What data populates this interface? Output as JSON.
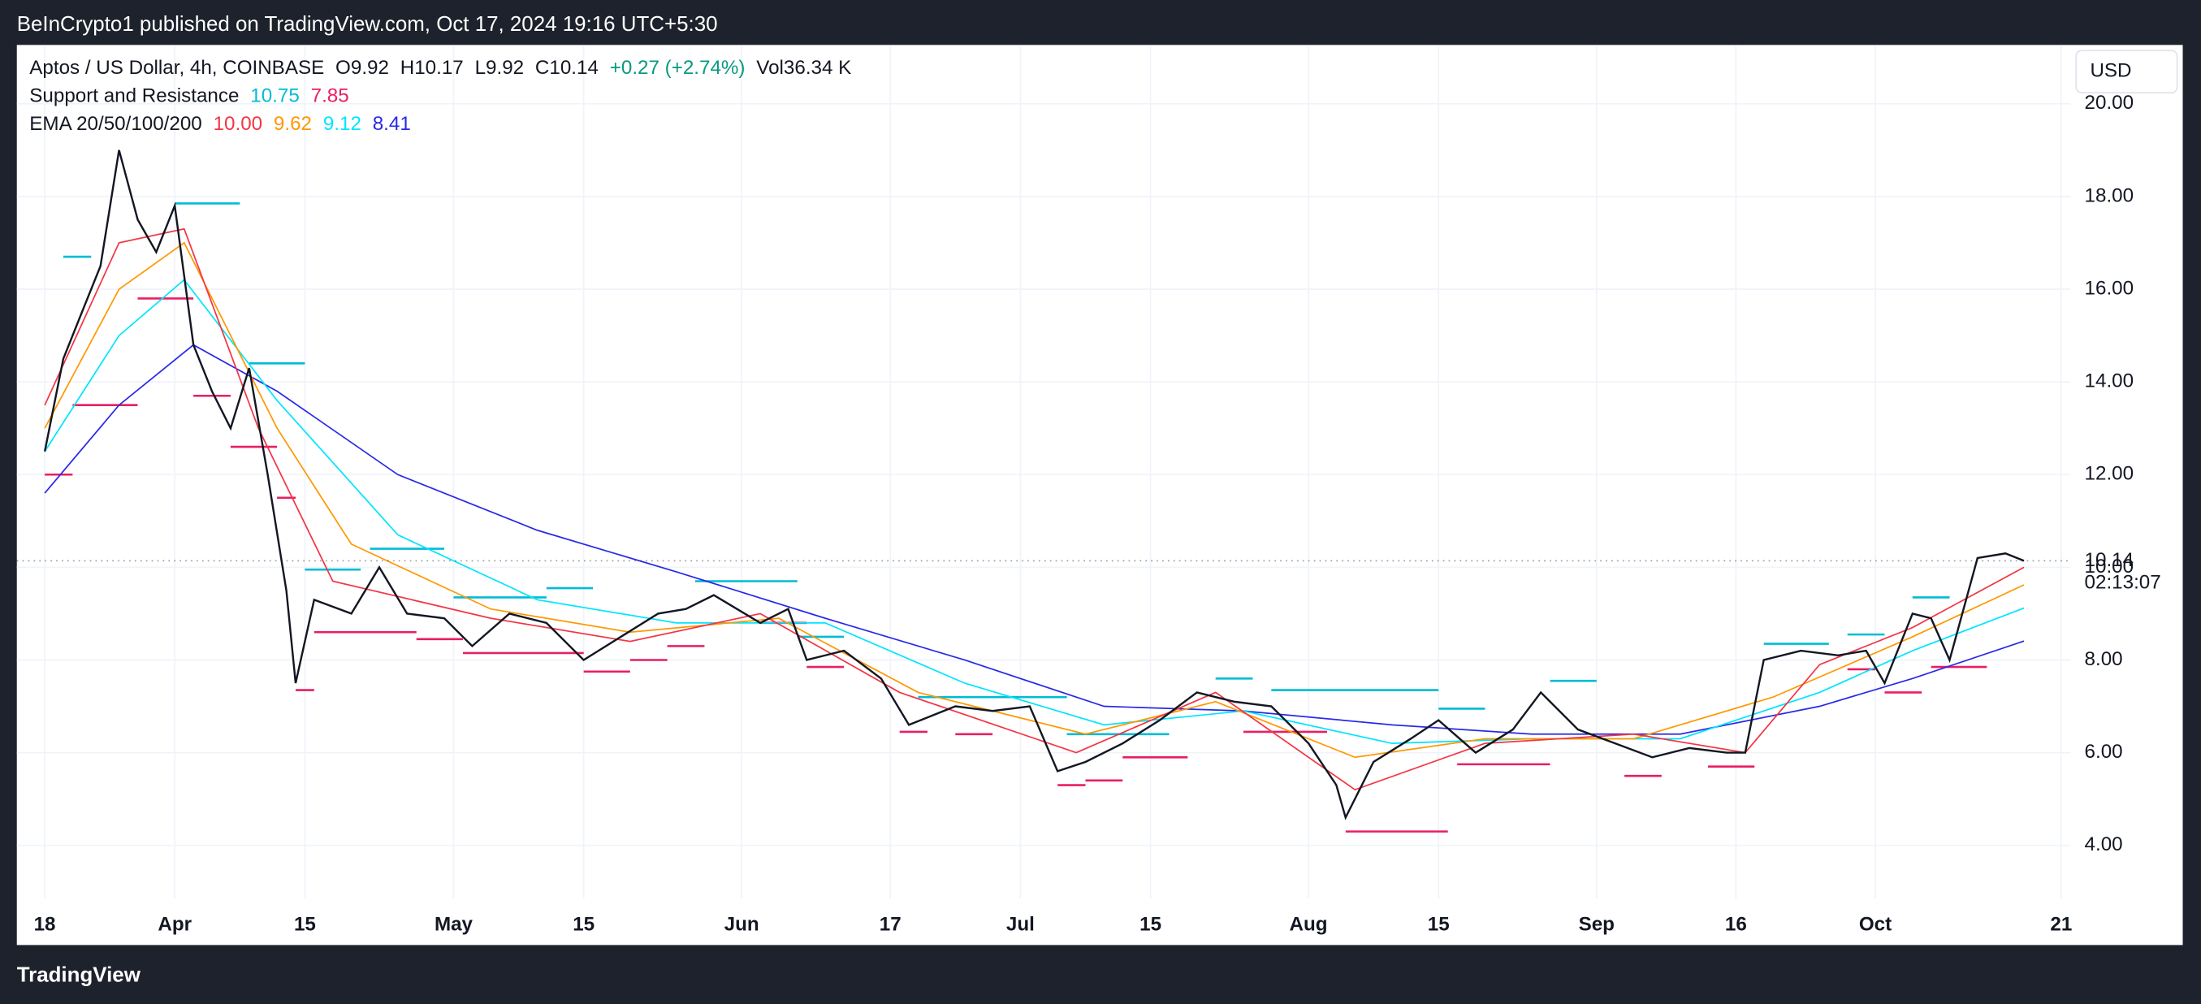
{
  "chart_data": {
    "type": "line",
    "publisher": "BeInCrypto1 published on TradingView.com, Oct 17, 2024 19:16 UTC+5:30",
    "symbol": "Aptos / US Dollar, 4h, COINBASE",
    "ohlc": [
      "O9.92",
      "H10.17",
      "L9.92",
      "C10.14",
      "+0.27 (+2.74%)",
      "Vol36.34 K"
    ],
    "currency": "USD",
    "brand": "TradingView",
    "countdown": "02:13:07",
    "last_price": 10.14,
    "xlim": [
      "2024-03-15",
      "2024-10-22"
    ],
    "xticks": [
      {
        "value": "2024-03-18",
        "label": "18"
      },
      {
        "value": "2024-04-01",
        "label": "Apr"
      },
      {
        "value": "2024-04-15",
        "label": "15"
      },
      {
        "value": "2024-05-01",
        "label": "May"
      },
      {
        "value": "2024-05-15",
        "label": "15"
      },
      {
        "value": "2024-06-01",
        "label": "Jun"
      },
      {
        "value": "2024-06-17",
        "label": "17"
      },
      {
        "value": "2024-07-01",
        "label": "Jul"
      },
      {
        "value": "2024-07-15",
        "label": "15"
      },
      {
        "value": "2024-08-01",
        "label": "Aug"
      },
      {
        "value": "2024-08-15",
        "label": "15"
      },
      {
        "value": "2024-09-01",
        "label": "Sep"
      },
      {
        "value": "2024-09-16",
        "label": "16"
      },
      {
        "value": "2024-10-01",
        "label": "Oct"
      },
      {
        "value": "2024-10-21",
        "label": "21"
      }
    ],
    "ylim": [
      2.85,
      21.27
    ],
    "yticks": [
      {
        "value": 4,
        "label": "4.00"
      },
      {
        "value": 6,
        "label": "6.00"
      },
      {
        "value": 8,
        "label": "8.00"
      },
      {
        "value": 10,
        "label": "10.00"
      },
      {
        "value": 12,
        "label": "12.00"
      },
      {
        "value": 14,
        "label": "14.00"
      },
      {
        "value": 16,
        "label": "16.00"
      },
      {
        "value": 18,
        "label": "18.00"
      },
      {
        "value": 20,
        "label": "20.00"
      }
    ],
    "grid": true,
    "series": [
      {
        "name": "Aptos / US Dollar",
        "color": "#131722",
        "x": [
          "2024-03-18",
          "2024-03-20",
          "2024-03-22",
          "2024-03-24",
          "2024-03-26",
          "2024-03-28",
          "2024-03-30",
          "2024-04-01",
          "2024-04-03",
          "2024-04-05",
          "2024-04-07",
          "2024-04-09",
          "2024-04-11",
          "2024-04-13",
          "2024-04-14",
          "2024-04-16",
          "2024-04-20",
          "2024-04-23",
          "2024-04-26",
          "2024-04-30",
          "2024-05-03",
          "2024-05-07",
          "2024-05-11",
          "2024-05-15",
          "2024-05-19",
          "2024-05-23",
          "2024-05-26",
          "2024-05-29",
          "2024-06-03",
          "2024-06-06",
          "2024-06-08",
          "2024-06-12",
          "2024-06-16",
          "2024-06-19",
          "2024-06-24",
          "2024-06-28",
          "2024-07-02",
          "2024-07-05",
          "2024-07-08",
          "2024-07-12",
          "2024-07-16",
          "2024-07-20",
          "2024-07-24",
          "2024-07-28",
          "2024-08-01",
          "2024-08-04",
          "2024-08-05",
          "2024-08-08",
          "2024-08-12",
          "2024-08-15",
          "2024-08-19",
          "2024-08-23",
          "2024-08-26",
          "2024-08-30",
          "2024-09-03",
          "2024-09-07",
          "2024-09-11",
          "2024-09-15",
          "2024-09-17",
          "2024-09-19",
          "2024-09-23",
          "2024-09-27",
          "2024-09-30",
          "2024-10-02",
          "2024-10-05",
          "2024-10-07",
          "2024-10-09",
          "2024-10-12",
          "2024-10-15",
          "2024-10-17"
        ],
        "values": [
          12.5,
          14.5,
          15.5,
          16.5,
          19.0,
          17.5,
          16.8,
          17.8,
          14.8,
          13.8,
          13.0,
          14.3,
          12.0,
          9.5,
          7.5,
          9.3,
          9.0,
          10.0,
          9.0,
          8.9,
          8.3,
          9.0,
          8.8,
          8.0,
          8.5,
          9.0,
          9.1,
          9.4,
          8.8,
          9.1,
          8.0,
          8.2,
          7.6,
          6.6,
          7.0,
          6.9,
          7.0,
          5.6,
          5.8,
          6.2,
          6.7,
          7.3,
          7.1,
          7.0,
          6.2,
          5.3,
          4.6,
          5.8,
          6.3,
          6.7,
          6.0,
          6.5,
          7.3,
          6.5,
          6.2,
          5.9,
          6.1,
          6.0,
          6.0,
          8.0,
          8.2,
          8.1,
          8.2,
          7.5,
          9.0,
          8.9,
          8.0,
          10.2,
          10.3,
          10.14
        ]
      },
      {
        "name": "EMA 20",
        "color": "#f23645",
        "x": [
          "2024-03-18",
          "2024-03-26",
          "2024-04-02",
          "2024-04-10",
          "2024-04-18",
          "2024-05-05",
          "2024-05-20",
          "2024-06-03",
          "2024-06-18",
          "2024-07-07",
          "2024-07-22",
          "2024-08-06",
          "2024-08-20",
          "2024-09-05",
          "2024-09-17",
          "2024-09-25",
          "2024-10-05",
          "2024-10-17"
        ],
        "values": [
          13.5,
          17.0,
          17.3,
          13.0,
          9.7,
          8.9,
          8.4,
          9.0,
          7.3,
          6.0,
          7.3,
          5.2,
          6.2,
          6.4,
          6.0,
          7.9,
          8.7,
          10.0
        ],
        "legend_value": "10.00"
      },
      {
        "name": "EMA 50",
        "color": "#ff9800",
        "x": [
          "2024-03-18",
          "2024-03-26",
          "2024-04-02",
          "2024-04-12",
          "2024-04-20",
          "2024-05-05",
          "2024-05-20",
          "2024-06-05",
          "2024-06-20",
          "2024-07-08",
          "2024-07-22",
          "2024-08-06",
          "2024-08-20",
          "2024-09-05",
          "2024-09-20",
          "2024-10-05",
          "2024-10-17"
        ],
        "values": [
          13.0,
          16.0,
          17.0,
          13.0,
          10.5,
          9.1,
          8.6,
          8.9,
          7.3,
          6.4,
          7.1,
          5.9,
          6.3,
          6.3,
          7.2,
          8.5,
          9.62
        ],
        "legend_value": "9.62"
      },
      {
        "name": "EMA 100",
        "color": "#00e5ff",
        "x": [
          "2024-03-18",
          "2024-03-26",
          "2024-04-02",
          "2024-04-12",
          "2024-04-25",
          "2024-05-10",
          "2024-05-25",
          "2024-06-10",
          "2024-06-25",
          "2024-07-10",
          "2024-07-25",
          "2024-08-10",
          "2024-08-25",
          "2024-09-10",
          "2024-09-25",
          "2024-10-05",
          "2024-10-17"
        ],
        "values": [
          12.5,
          15.0,
          16.2,
          13.6,
          10.7,
          9.3,
          8.8,
          8.8,
          7.5,
          6.6,
          6.9,
          6.2,
          6.3,
          6.3,
          7.3,
          8.2,
          9.12
        ],
        "legend_value": "9.12"
      },
      {
        "name": "EMA 200",
        "color": "#2929e8",
        "x": [
          "2024-03-18",
          "2024-03-26",
          "2024-04-03",
          "2024-04-12",
          "2024-04-25",
          "2024-05-10",
          "2024-05-25",
          "2024-06-10",
          "2024-06-25",
          "2024-07-10",
          "2024-07-25",
          "2024-08-10",
          "2024-08-25",
          "2024-09-10",
          "2024-09-25",
          "2024-10-05",
          "2024-10-17"
        ],
        "values": [
          11.6,
          13.5,
          14.8,
          13.8,
          12.0,
          10.8,
          9.9,
          8.9,
          8.0,
          7.0,
          6.9,
          6.6,
          6.4,
          6.4,
          7.0,
          7.6,
          8.41
        ],
        "legend_value": "8.41"
      }
    ],
    "ema_label": "EMA 20/50/100/200",
    "support_resistance": {
      "name": "Support and Resistance",
      "resistance": {
        "color": "#00bcd4",
        "legend_value": "10.75",
        "levels": [
          {
            "start": "2024-03-20",
            "end": "2024-03-23",
            "value": 16.7
          },
          {
            "start": "2024-04-01",
            "end": "2024-04-08",
            "value": 17.85
          },
          {
            "start": "2024-04-09",
            "end": "2024-04-15",
            "value": 14.4
          },
          {
            "start": "2024-04-15",
            "end": "2024-04-21",
            "value": 9.95
          },
          {
            "start": "2024-04-22",
            "end": "2024-04-30",
            "value": 10.4
          },
          {
            "start": "2024-05-01",
            "end": "2024-05-11",
            "value": 9.35
          },
          {
            "start": "2024-05-11",
            "end": "2024-05-16",
            "value": 9.55
          },
          {
            "start": "2024-05-27",
            "end": "2024-06-07",
            "value": 9.7
          },
          {
            "start": "2024-06-07",
            "end": "2024-06-12",
            "value": 8.5
          },
          {
            "start": "2024-06-20",
            "end": "2024-07-06",
            "value": 7.2
          },
          {
            "start": "2024-07-06",
            "end": "2024-07-17",
            "value": 6.4
          },
          {
            "start": "2024-07-22",
            "end": "2024-07-26",
            "value": 7.6
          },
          {
            "start": "2024-07-28",
            "end": "2024-08-15",
            "value": 7.35
          },
          {
            "start": "2024-08-15",
            "end": "2024-08-20",
            "value": 6.95
          },
          {
            "start": "2024-08-27",
            "end": "2024-09-01",
            "value": 7.55
          },
          {
            "start": "2024-09-19",
            "end": "2024-09-26",
            "value": 8.35
          },
          {
            "start": "2024-09-28",
            "end": "2024-10-02",
            "value": 8.55
          },
          {
            "start": "2024-10-05",
            "end": "2024-10-09",
            "value": 9.35
          }
        ]
      },
      "support": {
        "color": "#e91e63",
        "legend_value": "7.85",
        "levels": [
          {
            "start": "2024-03-18",
            "end": "2024-03-21",
            "value": 12.0
          },
          {
            "start": "2024-03-21",
            "end": "2024-03-28",
            "value": 13.5
          },
          {
            "start": "2024-03-28",
            "end": "2024-04-03",
            "value": 15.8
          },
          {
            "start": "2024-04-03",
            "end": "2024-04-07",
            "value": 13.7
          },
          {
            "start": "2024-04-07",
            "end": "2024-04-12",
            "value": 12.6
          },
          {
            "start": "2024-04-12",
            "end": "2024-04-14",
            "value": 11.5
          },
          {
            "start": "2024-04-14",
            "end": "2024-04-16",
            "value": 7.35
          },
          {
            "start": "2024-04-16",
            "end": "2024-04-27",
            "value": 8.6
          },
          {
            "start": "2024-04-27",
            "end": "2024-05-02",
            "value": 8.45
          },
          {
            "start": "2024-05-02",
            "end": "2024-05-15",
            "value": 8.15
          },
          {
            "start": "2024-05-15",
            "end": "2024-05-20",
            "value": 7.75
          },
          {
            "start": "2024-05-20",
            "end": "2024-05-24",
            "value": 8.0
          },
          {
            "start": "2024-05-24",
            "end": "2024-05-28",
            "value": 8.3
          },
          {
            "start": "2024-06-03",
            "end": "2024-06-08",
            "value": 8.8
          },
          {
            "start": "2024-06-08",
            "end": "2024-06-12",
            "value": 7.85
          },
          {
            "start": "2024-06-18",
            "end": "2024-06-21",
            "value": 6.45
          },
          {
            "start": "2024-06-24",
            "end": "2024-06-28",
            "value": 6.4
          },
          {
            "start": "2024-07-05",
            "end": "2024-07-08",
            "value": 5.3
          },
          {
            "start": "2024-07-08",
            "end": "2024-07-12",
            "value": 5.4
          },
          {
            "start": "2024-07-12",
            "end": "2024-07-19",
            "value": 5.9
          },
          {
            "start": "2024-07-25",
            "end": "2024-08-03",
            "value": 6.45
          },
          {
            "start": "2024-08-05",
            "end": "2024-08-16",
            "value": 4.3
          },
          {
            "start": "2024-08-17",
            "end": "2024-08-27",
            "value": 5.75
          },
          {
            "start": "2024-09-04",
            "end": "2024-09-08",
            "value": 5.5
          },
          {
            "start": "2024-09-13",
            "end": "2024-09-18",
            "value": 5.7
          },
          {
            "start": "2024-09-28",
            "end": "2024-10-01",
            "value": 7.8
          },
          {
            "start": "2024-10-02",
            "end": "2024-10-06",
            "value": 7.3
          },
          {
            "start": "2024-10-07",
            "end": "2024-10-13",
            "value": 7.85
          }
        ]
      }
    }
  }
}
